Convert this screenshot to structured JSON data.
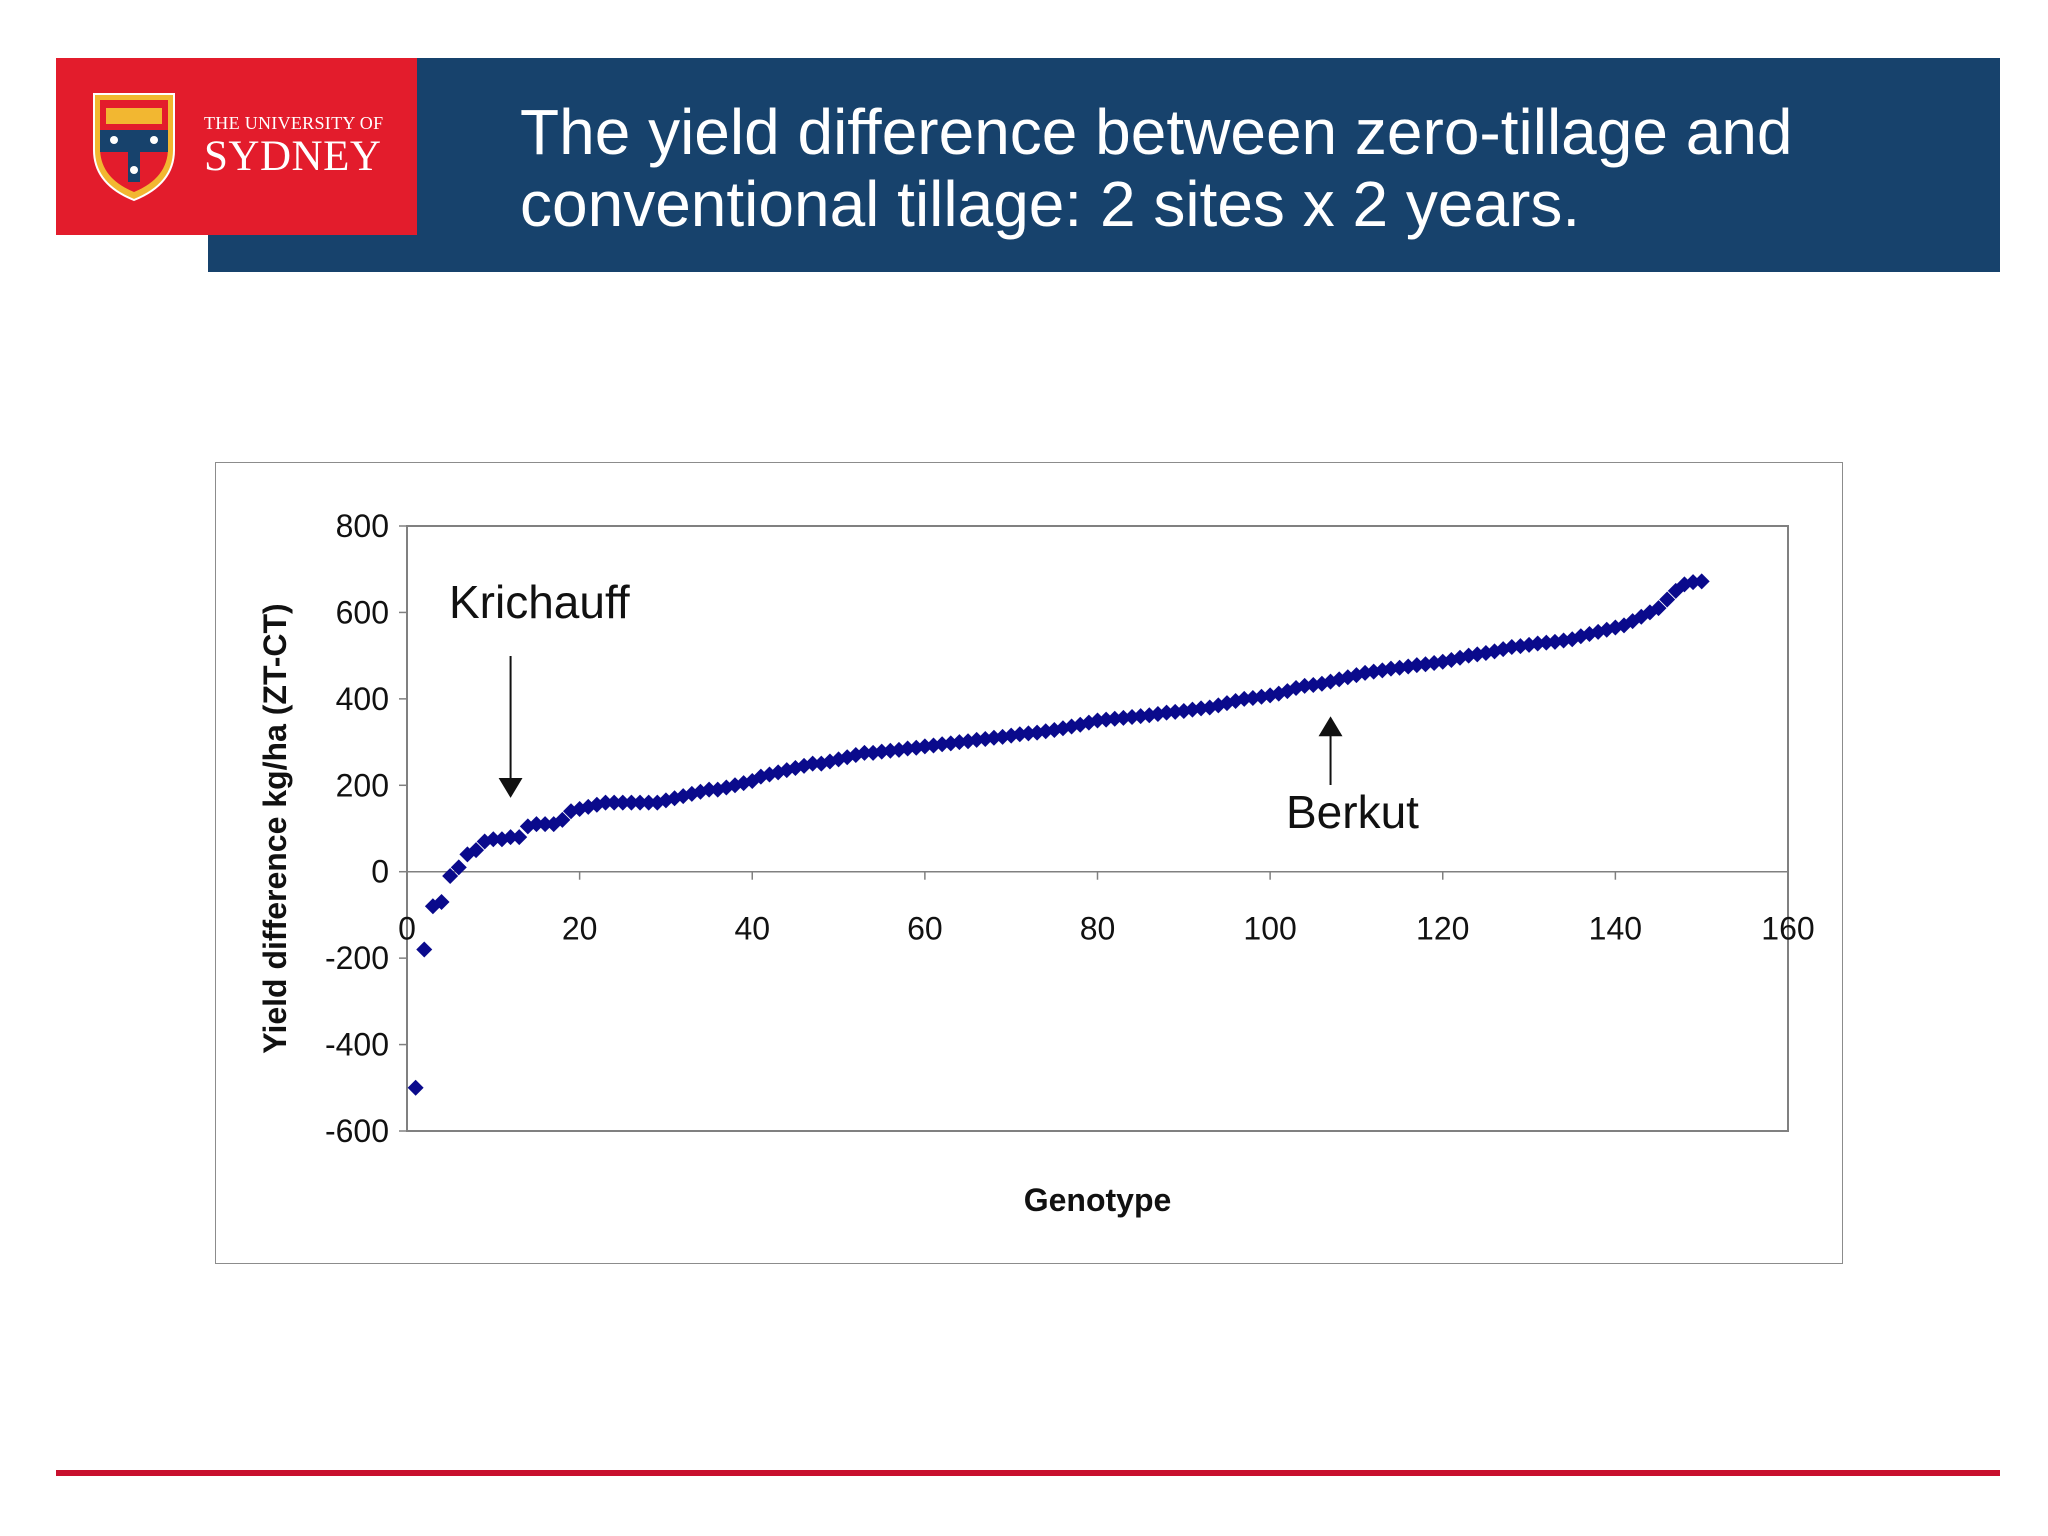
{
  "slide": {
    "title": "The yield difference between zero-tillage and conventional tillage: 2 sites x 2 years."
  },
  "logo": {
    "line1": "THE UNIVERSITY OF",
    "line2": "SYDNEY"
  },
  "colors": {
    "header": "#17426c",
    "logo_background": "#e31c2c",
    "footer_rule": "#c8102e",
    "marker": "#0a0a8c"
  },
  "chart_data": {
    "type": "scatter",
    "xlabel": "Genotype",
    "ylabel": "Yield difference kg/ha (ZT-CT)",
    "xlim": [
      0,
      160
    ],
    "ylim": [
      -600,
      800
    ],
    "x_ticks": [
      "0",
      "20",
      "40",
      "60",
      "80",
      "100",
      "120",
      "140",
      "160"
    ],
    "y_ticks": [
      "800",
      "600",
      "400",
      "200",
      "0",
      "-200",
      "-400",
      "-600"
    ],
    "marker": "diamond",
    "grid": false,
    "legend": "none",
    "annotations": [
      {
        "text": "Krichauff",
        "x": 12,
        "y": 180,
        "arrow": "down"
      },
      {
        "text": "Berkut",
        "x": 107,
        "y": 355,
        "arrow": "up"
      }
    ],
    "series": [
      {
        "x": [
          1,
          2,
          3,
          4,
          5,
          6,
          7,
          8,
          9,
          10,
          11,
          12,
          13,
          14,
          15,
          16,
          17,
          18,
          19,
          20,
          21,
          22,
          23,
          24,
          25,
          26,
          27,
          28,
          29,
          30,
          31,
          32,
          33,
          34,
          35,
          36,
          37,
          38,
          39,
          40,
          41,
          42,
          43,
          44,
          45,
          46,
          47,
          48,
          49,
          50,
          51,
          52,
          53,
          54,
          55,
          56,
          57,
          58,
          59,
          60,
          61,
          62,
          63,
          64,
          65,
          66,
          67,
          68,
          69,
          70,
          71,
          72,
          73,
          74,
          75,
          76,
          77,
          78,
          79,
          80,
          81,
          82,
          83,
          84,
          85,
          86,
          87,
          88,
          89,
          90,
          91,
          92,
          93,
          94,
          95,
          96,
          97,
          98,
          99,
          100,
          101,
          102,
          103,
          104,
          105,
          106,
          107,
          108,
          109,
          110,
          111,
          112,
          113,
          114,
          115,
          116,
          117,
          118,
          119,
          120,
          121,
          122,
          123,
          124,
          125,
          126,
          127,
          128,
          129,
          130,
          131,
          132,
          133,
          134,
          135,
          136,
          137,
          138,
          139,
          140,
          141,
          142,
          143,
          144,
          145,
          146,
          147,
          148,
          149,
          150
        ],
        "y": [
          -500,
          -180,
          -80,
          -70,
          -10,
          10,
          40,
          50,
          70,
          75,
          75,
          80,
          80,
          105,
          110,
          110,
          110,
          120,
          140,
          145,
          150,
          155,
          160,
          160,
          160,
          160,
          160,
          160,
          160,
          165,
          170,
          175,
          180,
          185,
          190,
          190,
          195,
          200,
          205,
          210,
          220,
          225,
          230,
          235,
          240,
          245,
          250,
          250,
          255,
          260,
          265,
          270,
          275,
          275,
          278,
          280,
          282,
          285,
          287,
          290,
          292,
          295,
          297,
          300,
          302,
          305,
          307,
          310,
          312,
          315,
          318,
          320,
          322,
          325,
          328,
          332,
          336,
          340,
          345,
          350,
          352,
          354,
          356,
          358,
          360,
          362,
          365,
          368,
          370,
          372,
          375,
          378,
          380,
          385,
          390,
          395,
          400,
          402,
          405,
          408,
          412,
          418,
          425,
          430,
          432,
          435,
          440,
          445,
          450,
          455,
          460,
          463,
          466,
          470,
          472,
          475,
          478,
          480,
          483,
          486,
          490,
          495,
          500,
          503,
          506,
          510,
          515,
          520,
          522,
          525,
          528,
          530,
          532,
          535,
          538,
          545,
          550,
          555,
          560,
          565,
          570,
          580,
          590,
          600,
          610,
          630,
          650,
          665,
          670,
          672
        ]
      }
    ]
  }
}
